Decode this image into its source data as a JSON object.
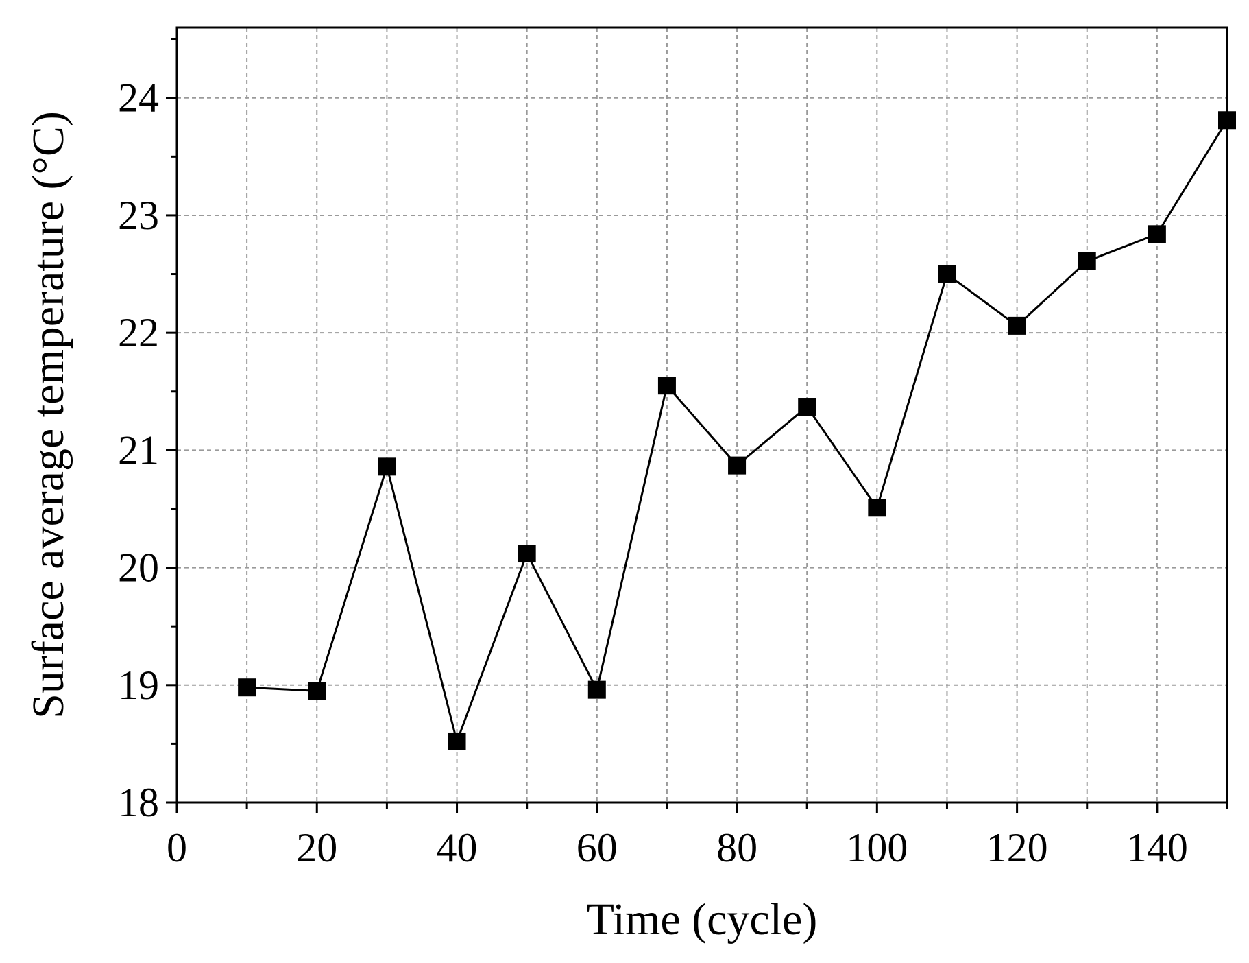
{
  "chart_data": {
    "type": "line",
    "title": "",
    "xlabel": "Time (cycle)",
    "ylabel": "Surface average temperature (°C)",
    "xlim": [
      0,
      150
    ],
    "ylim": [
      18,
      24.6
    ],
    "xticks": [
      0,
      20,
      40,
      60,
      80,
      100,
      120,
      140
    ],
    "xtick_labels": [
      "0",
      "20",
      "40",
      "60",
      "80",
      "100",
      "120",
      "140"
    ],
    "x_minor_step": 10,
    "yticks": [
      18,
      19,
      20,
      21,
      22,
      23,
      24
    ],
    "ytick_labels": [
      "18",
      "19",
      "20",
      "21",
      "22",
      "23",
      "24"
    ],
    "y_minor_step": 0.5,
    "grid": true,
    "legend": "none",
    "series": [
      {
        "name": "Surface average temperature",
        "marker": "square",
        "color": "#000000",
        "x": [
          10,
          20,
          30,
          40,
          50,
          60,
          70,
          80,
          90,
          100,
          110,
          120,
          130,
          140,
          150
        ],
        "values": [
          18.98,
          18.95,
          20.86,
          18.52,
          20.12,
          18.96,
          21.55,
          20.87,
          21.37,
          20.51,
          22.5,
          22.06,
          22.61,
          22.84,
          23.81
        ]
      }
    ]
  }
}
